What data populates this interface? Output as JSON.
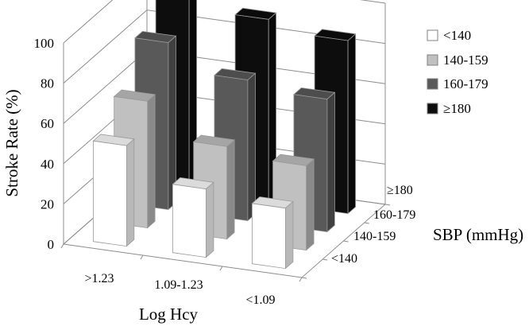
{
  "chart_data": {
    "type": "bar",
    "subtype": "3d-grouped",
    "title": "",
    "ylabel": "Stroke Rate (%)",
    "xlabel": "Log Hcy",
    "zlabel": "SBP (mmHg)",
    "ylim": [
      0,
      100
    ],
    "y_ticks": [
      "0",
      "20",
      "40",
      "60",
      "80",
      "100"
    ],
    "x_categories": [
      ">1.23",
      "1.09-1.23",
      "<1.09"
    ],
    "z_categories": [
      "<140",
      "140-159",
      "160-179",
      "≥180"
    ],
    "series": [
      {
        "name": "<140",
        "color": "#ffffff",
        "values": [
          50,
          34,
          30
        ]
      },
      {
        "name": "140-159",
        "color": "#c0c0c0",
        "values": [
          63,
          46,
          42
        ]
      },
      {
        "name": "160-179",
        "color": "#595959",
        "values": [
          83,
          70,
          66
        ]
      },
      {
        "name": "≥180",
        "color": "#0d0d0d",
        "values": [
          98,
          91,
          86
        ]
      }
    ],
    "legend": {
      "position": "top-right",
      "entries": [
        "<140",
        "140-159",
        "160-179",
        "≥180"
      ]
    },
    "grid": true
  }
}
